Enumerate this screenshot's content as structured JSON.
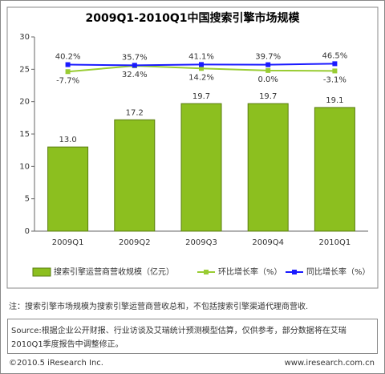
{
  "chart_data": {
    "type": "bar",
    "title": "2009Q1-2010Q1中国搜索引擎市场规模",
    "categories": [
      "2009Q1",
      "2009Q2",
      "2009Q3",
      "2009Q4",
      "2010Q1"
    ],
    "ylim": [
      0,
      30
    ],
    "yticks": [
      0,
      5,
      10,
      15,
      20,
      25,
      30
    ],
    "y2lim": [
      -1100,
      230
    ],
    "series": [
      {
        "name": "搜索引擎运营商营收规模（亿元）",
        "type": "bar",
        "color": "#8cbf1f",
        "values": [
          13.0,
          17.2,
          19.7,
          19.7,
          19.1
        ],
        "value_labels": [
          "13.0",
          "17.2",
          "19.7",
          "19.7",
          "19.1"
        ]
      },
      {
        "name": "环比增长率（%）",
        "type": "line",
        "axis": "y2",
        "color": "#99cc33",
        "values": [
          -7.7,
          32.4,
          14.2,
          0.0,
          -3.1
        ],
        "value_labels": [
          "-7.7%",
          "32.4%",
          "14.2%",
          "0.0%",
          "-3.1%"
        ]
      },
      {
        "name": "同比增长率（%）",
        "type": "line",
        "axis": "y2",
        "color": "#1a1aff",
        "values": [
          40.2,
          35.7,
          41.1,
          39.7,
          46.5
        ],
        "value_labels": [
          "40.2%",
          "35.7%",
          "41.1%",
          "39.7%",
          "46.5%"
        ]
      }
    ]
  },
  "note": "注：搜索引擎市场规模为搜索引擎运营商营收总和，不包括搜索引擎渠道代理商营收.",
  "source": [
    "Source:根据企业公开财报、行业访谈及艾瑞统计预测模型估算，仅供参考，部分数据将在艾瑞",
    "2010Q1季度报告中调整修正。"
  ],
  "footer": {
    "copyright": "©2010.5 iResearch Inc.",
    "website": "www.iresearch.com.cn"
  }
}
